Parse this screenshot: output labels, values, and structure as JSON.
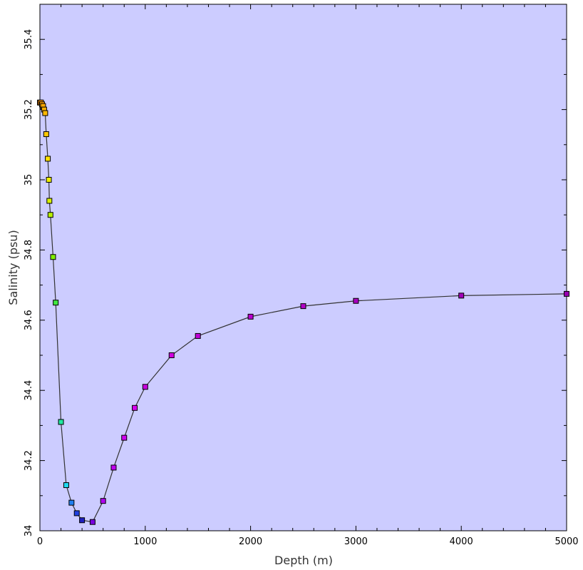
{
  "chart_data": {
    "type": "line",
    "title": "",
    "xlabel": "Depth (m)",
    "ylabel": "Salinity (psu)",
    "xlim": [
      0,
      5000
    ],
    "ylim": [
      34.0,
      35.5
    ],
    "x_ticks": [
      0,
      1000,
      2000,
      3000,
      4000,
      5000
    ],
    "y_ticks": [
      34,
      34.2,
      34.4,
      34.6,
      34.8,
      35,
      35.2,
      35.4
    ],
    "x_tick_labels": [
      "0",
      "1000",
      "2000",
      "3000",
      "4000",
      "5000"
    ],
    "y_tick_labels": [
      "34",
      "34.2",
      "34.4",
      "34.6",
      "34.8",
      "35",
      "35.2",
      "35.4"
    ],
    "grid": false,
    "legend": "none",
    "plot_background": "#ccccff",
    "line_color": "#333333",
    "series": [
      {
        "points": [
          {
            "x": 0,
            "y": 35.22,
            "color": "#ff8c00"
          },
          {
            "x": 10,
            "y": 35.22,
            "color": "#ff9800"
          },
          {
            "x": 20,
            "y": 35.215,
            "color": "#ffa000"
          },
          {
            "x": 30,
            "y": 35.21,
            "color": "#ffa800"
          },
          {
            "x": 40,
            "y": 35.2,
            "color": "#ffb000"
          },
          {
            "x": 50,
            "y": 35.19,
            "color": "#ffb800"
          },
          {
            "x": 60,
            "y": 35.13,
            "color": "#ffc800"
          },
          {
            "x": 75,
            "y": 35.06,
            "color": "#ffe000"
          },
          {
            "x": 85,
            "y": 35.0,
            "color": "#f0f000"
          },
          {
            "x": 90,
            "y": 34.94,
            "color": "#d8f000"
          },
          {
            "x": 100,
            "y": 34.9,
            "color": "#b8f000"
          },
          {
            "x": 125,
            "y": 34.78,
            "color": "#80f000"
          },
          {
            "x": 150,
            "y": 34.65,
            "color": "#40e840"
          },
          {
            "x": 200,
            "y": 34.31,
            "color": "#20e8a0"
          },
          {
            "x": 250,
            "y": 34.13,
            "color": "#20d8f0"
          },
          {
            "x": 300,
            "y": 34.08,
            "color": "#2080f0"
          },
          {
            "x": 350,
            "y": 34.05,
            "color": "#2040e0"
          },
          {
            "x": 400,
            "y": 34.03,
            "color": "#2020c0"
          },
          {
            "x": 500,
            "y": 34.025,
            "color": "#7a00e0"
          },
          {
            "x": 600,
            "y": 34.085,
            "color": "#b000f0"
          },
          {
            "x": 700,
            "y": 34.18,
            "color": "#c000f0"
          },
          {
            "x": 800,
            "y": 34.265,
            "color": "#d000f0"
          },
          {
            "x": 900,
            "y": 34.35,
            "color": "#d800f0"
          },
          {
            "x": 1000,
            "y": 34.41,
            "color": "#c800e0"
          },
          {
            "x": 1250,
            "y": 34.5,
            "color": "#d000e0"
          },
          {
            "x": 1500,
            "y": 34.555,
            "color": "#c000d8"
          },
          {
            "x": 2000,
            "y": 34.61,
            "color": "#b800d0"
          },
          {
            "x": 2500,
            "y": 34.64,
            "color": "#b000c8"
          },
          {
            "x": 3000,
            "y": 34.655,
            "color": "#a800c0"
          },
          {
            "x": 4000,
            "y": 34.67,
            "color": "#a000b8"
          },
          {
            "x": 5000,
            "y": 34.675,
            "color": "#9800b0"
          }
        ]
      }
    ]
  }
}
